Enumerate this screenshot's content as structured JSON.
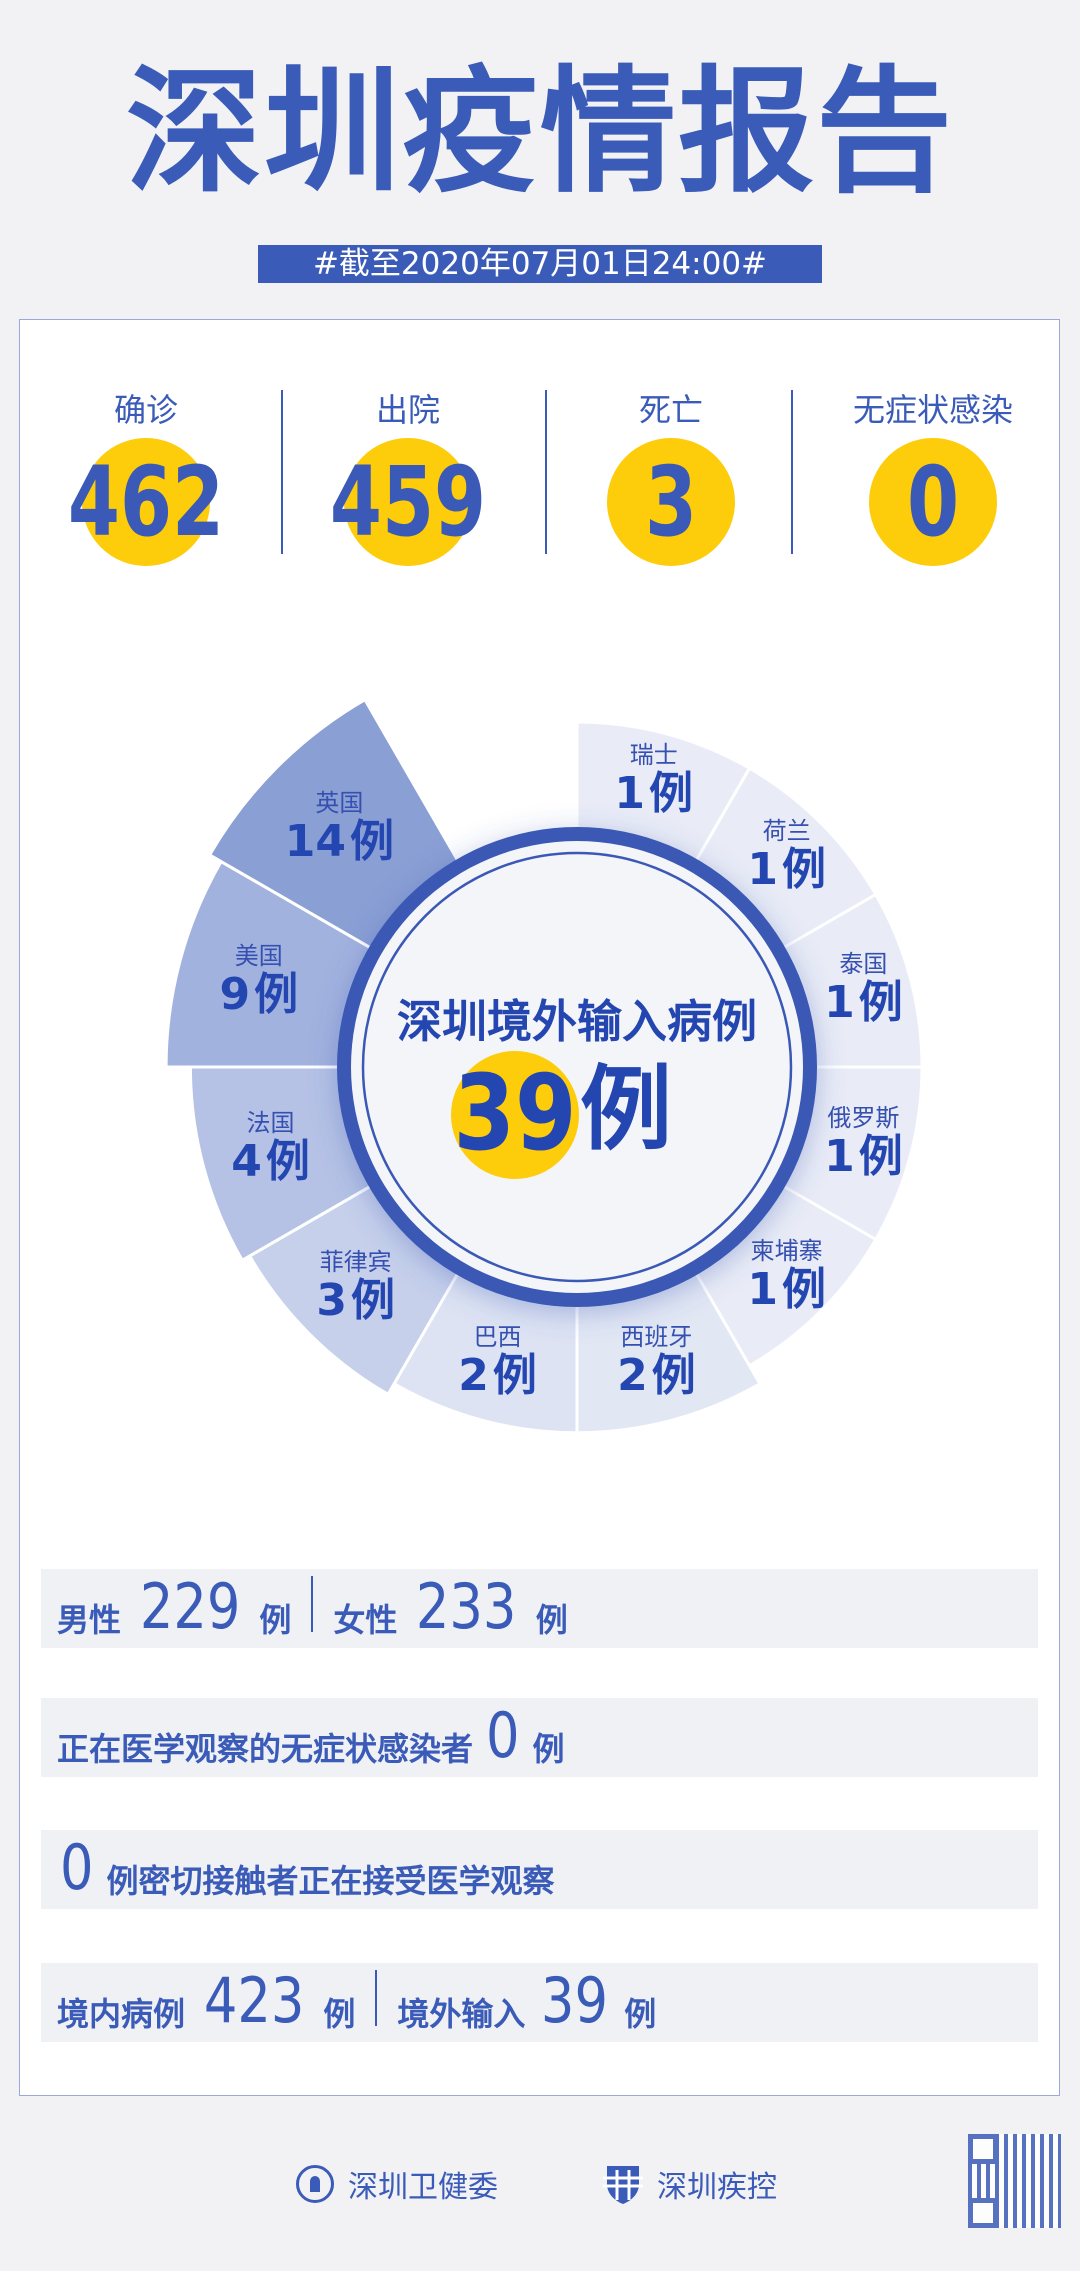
{
  "header": {
    "title": "深圳疫情报告",
    "date": "#截至2020年07月01日24:00#"
  },
  "stats": [
    {
      "label": "确诊",
      "value": "462"
    },
    {
      "label": "出院",
      "value": "459"
    },
    {
      "label": "死亡",
      "value": "3"
    },
    {
      "label": "无症状感染",
      "value": "0"
    }
  ],
  "chart_data": {
    "type": "radial-bar",
    "title": "深圳境外输入病例",
    "total": "39",
    "unit": "例",
    "categories": [
      "瑞士",
      "荷兰",
      "泰国",
      "俄罗斯",
      "柬埔寨",
      "西班牙",
      "巴西",
      "菲律宾",
      "法国",
      "美国",
      "英国"
    ],
    "values": [
      1,
      1,
      1,
      1,
      1,
      2,
      2,
      3,
      4,
      9,
      14
    ],
    "colors": [
      "#e9ecf6",
      "#e9ecf6",
      "#e9ecf6",
      "#e9ecf6",
      "#e9ecf6",
      "#e2e7f4",
      "#dde3f3",
      "#c6d0eb",
      "#b5c2e5",
      "#a2b2de",
      "#8a9fd4"
    ],
    "ring_color": "#3a58b5",
    "highlight_color": "#fdcc0a"
  },
  "rows": {
    "gender": {
      "male_label": "男性",
      "male": "229",
      "female_label": "女性",
      "female": "233",
      "unit": "例"
    },
    "asymptomatic": {
      "label": "正在医学观察的无症状感染者",
      "value": "0",
      "unit": "例"
    },
    "contacts": {
      "value": "0",
      "label": "例密切接触者正在接受医学观察"
    },
    "source": {
      "local_label": "境内病例",
      "local": "423",
      "import_label": "境外输入",
      "import": "39",
      "unit": "例"
    }
  },
  "footer": {
    "org1": "深圳卫健委",
    "org2": "深圳疾控"
  },
  "colors": {
    "primary": "#3a5bb8",
    "accent": "#fdcc0a",
    "background": "#f2f2f4"
  }
}
